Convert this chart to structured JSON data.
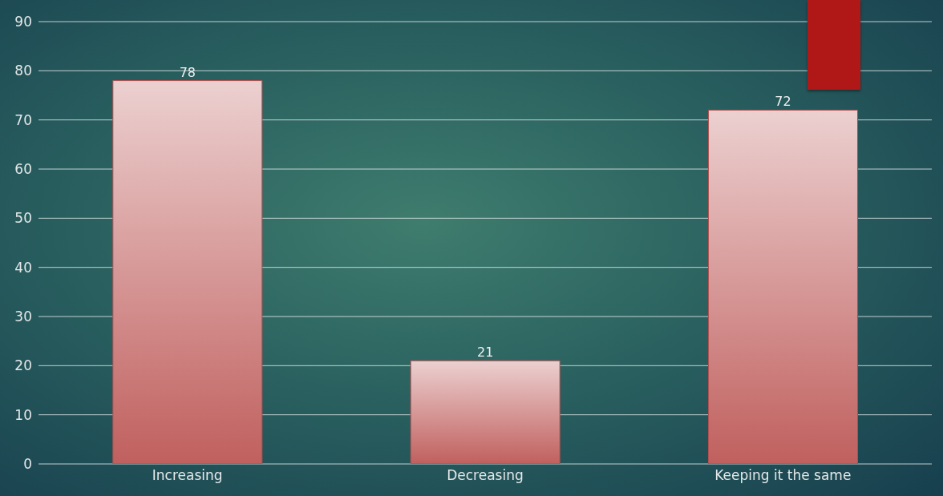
{
  "chart_data": {
    "type": "bar",
    "categories": [
      "Increasing",
      "Decreasing",
      "Keeping it the same"
    ],
    "values": [
      78,
      21,
      72
    ],
    "color": "#c0605e",
    "ylim": [
      0,
      90
    ],
    "yticks": [
      0,
      10,
      20,
      30,
      40,
      50,
      60,
      70,
      80,
      90
    ],
    "grid": "y",
    "data_labels": true
  }
}
